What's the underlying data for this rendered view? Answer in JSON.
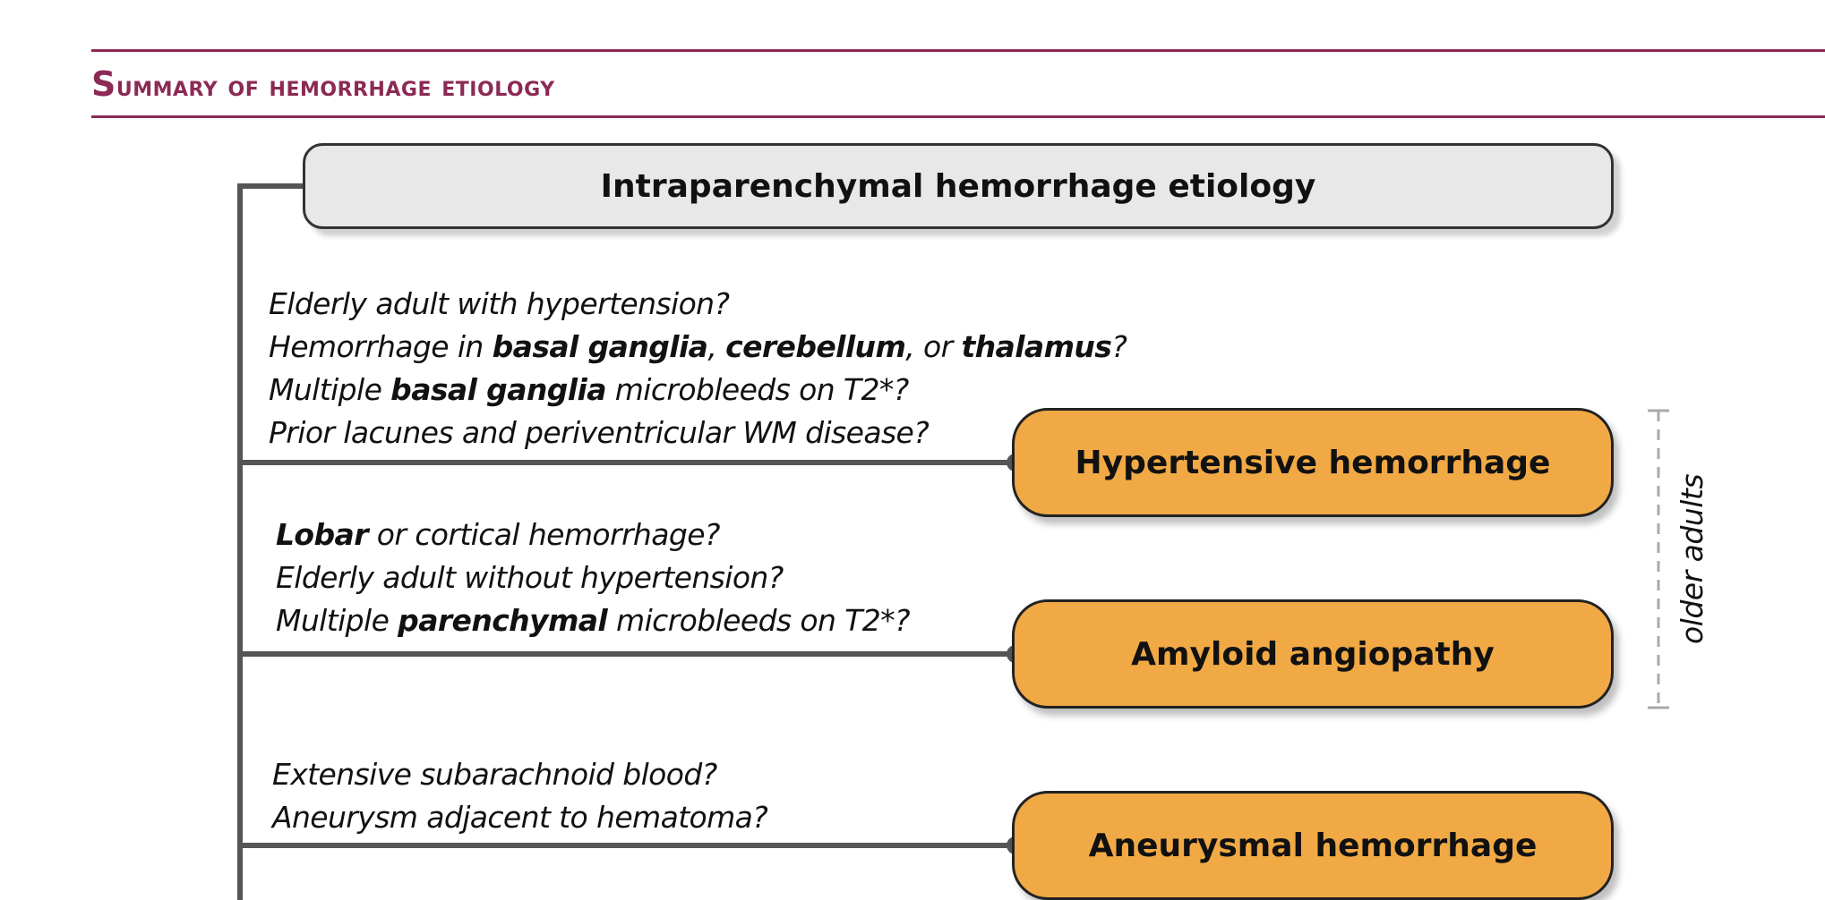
{
  "header": {
    "title": "Summary of hemorrhage etiology"
  },
  "root": {
    "label": "Intraparenchymal hemorrhage etiology"
  },
  "branches": [
    {
      "questions": [
        [
          {
            "t": "Elderly adult with hypertension?"
          }
        ],
        [
          {
            "t": "Hemorrhage in "
          },
          {
            "t": "basal ganglia",
            "b": true
          },
          {
            "t": ", "
          },
          {
            "t": "cerebellum",
            "b": true
          },
          {
            "t": ", or "
          },
          {
            "t": "thalamus",
            "b": true
          },
          {
            "t": "?"
          }
        ],
        [
          {
            "t": "Multiple "
          },
          {
            "t": "basal ganglia",
            "b": true
          },
          {
            "t": " microbleeds on T2*?"
          }
        ],
        [
          {
            "t": "Prior lacunes and periventricular WM disease?"
          }
        ]
      ],
      "result": "Hypertensive hemorrhage"
    },
    {
      "questions": [
        [
          {
            "t": "Lobar",
            "b": true
          },
          {
            "t": " or cortical hemorrhage?"
          }
        ],
        [
          {
            "t": "Elderly adult without hypertension?"
          }
        ],
        [
          {
            "t": "Multiple "
          },
          {
            "t": "parenchymal",
            "b": true
          },
          {
            "t": " microbleeds on T2*?"
          }
        ]
      ],
      "result": "Amyloid angiopathy"
    },
    {
      "questions": [
        [
          {
            "t": "Extensive subarachnoid blood?"
          }
        ],
        [
          {
            "t": "Aneurysm adjacent to hematoma?"
          }
        ]
      ],
      "result": "Aneurysmal hemorrhage"
    }
  ],
  "bracket": {
    "label": "older adults"
  },
  "colors": {
    "accent": "#8b2a55",
    "result_fill": "#f0a945",
    "root_fill": "#e8e8e8",
    "connector": "#555555",
    "bracket": "#aaaaaa"
  }
}
